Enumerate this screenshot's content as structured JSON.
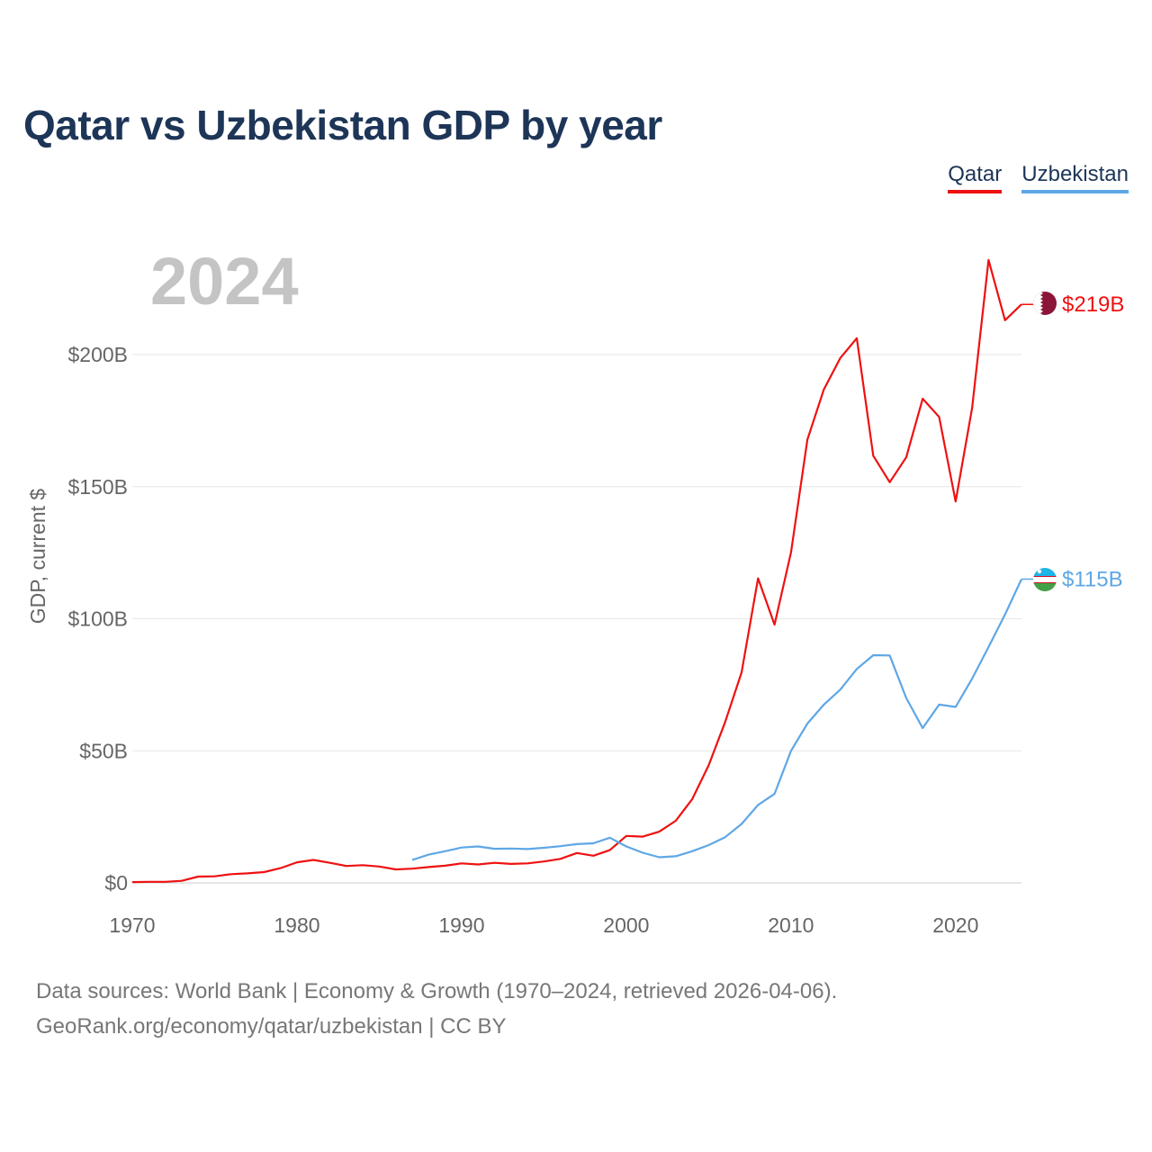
{
  "colors": {
    "qatar": "#ee1111",
    "uzbekistan": "#5ea7e6",
    "title": "#1d3557",
    "grid": "#e6e6e6",
    "axis_text": "#666666",
    "year_label": "#c4c4c4"
  },
  "header": {
    "title": "Qatar vs Uzbekistan GDP by year"
  },
  "legend": {
    "items": [
      "Qatar",
      "Uzbekistan"
    ]
  },
  "footer": {
    "line1": "Data sources: World Bank | Economy & Growth (1970–2024, retrieved 2026-04-06).",
    "line2": "GeoRank.org/economy/qatar/uzbekistan | CC BY"
  },
  "chart_data": {
    "type": "line",
    "title": "Qatar vs Uzbekistan GDP by year",
    "xlabel": "",
    "ylabel": "GDP, current $",
    "xlim": [
      1970,
      2024
    ],
    "ylim": [
      0,
      200
    ],
    "x_ticks": [
      1970,
      1980,
      1990,
      2000,
      2010,
      2020
    ],
    "y_ticks": [
      0,
      50,
      100,
      150,
      200
    ],
    "y_tick_labels": [
      "$0",
      "$50B",
      "$100B",
      "$150B",
      "$200B"
    ],
    "year_label": "2024",
    "grid": true,
    "legend_position": "top-right",
    "series": [
      {
        "name": "Qatar",
        "end_label": "$219B",
        "x": [
          1970,
          1971,
          1972,
          1973,
          1974,
          1975,
          1976,
          1977,
          1978,
          1979,
          1980,
          1981,
          1982,
          1983,
          1984,
          1985,
          1986,
          1987,
          1988,
          1989,
          1990,
          1991,
          1992,
          1993,
          1994,
          1995,
          1996,
          1997,
          1998,
          1999,
          2000,
          2001,
          2002,
          2003,
          2004,
          2005,
          2006,
          2007,
          2008,
          2009,
          2010,
          2011,
          2012,
          2013,
          2014,
          2015,
          2016,
          2017,
          2018,
          2019,
          2020,
          2021,
          2022,
          2023,
          2024
        ],
        "values": [
          0.3,
          0.4,
          0.4,
          0.8,
          2.4,
          2.5,
          3.3,
          3.6,
          4.1,
          5.6,
          7.8,
          8.7,
          7.6,
          6.4,
          6.7,
          6.2,
          5.1,
          5.4,
          6.0,
          6.5,
          7.4,
          7.0,
          7.6,
          7.2,
          7.4,
          8.1,
          9.1,
          11.3,
          10.3,
          12.4,
          17.8,
          17.5,
          19.4,
          23.5,
          31.7,
          44.5,
          60.9,
          79.7,
          115.3,
          97.8,
          125.1,
          167.8,
          186.8,
          198.7,
          206.2,
          161.7,
          151.7,
          161.1,
          183.3,
          176.4,
          144.4,
          179.7,
          235.8,
          213.0,
          219.0
        ]
      },
      {
        "name": "Uzbekistan",
        "end_label": "$115B",
        "x": [
          1987,
          1988,
          1989,
          1990,
          1991,
          1992,
          1993,
          1994,
          1995,
          1996,
          1997,
          1998,
          1999,
          2000,
          2001,
          2002,
          2003,
          2004,
          2005,
          2006,
          2007,
          2008,
          2009,
          2010,
          2011,
          2012,
          2013,
          2014,
          2015,
          2016,
          2017,
          2018,
          2019,
          2020,
          2021,
          2022,
          2023,
          2024
        ],
        "values": [
          8.7,
          10.7,
          12.0,
          13.4,
          13.8,
          12.9,
          13.0,
          12.8,
          13.3,
          13.9,
          14.7,
          15.0,
          17.1,
          13.8,
          11.4,
          9.7,
          10.1,
          12.0,
          14.3,
          17.3,
          22.3,
          29.5,
          33.7,
          50.0,
          60.3,
          67.5,
          73.2,
          81.0,
          86.2,
          86.1,
          70.0,
          58.6,
          67.5,
          66.6,
          77.3,
          89.3,
          101.6,
          115.0
        ]
      }
    ]
  }
}
